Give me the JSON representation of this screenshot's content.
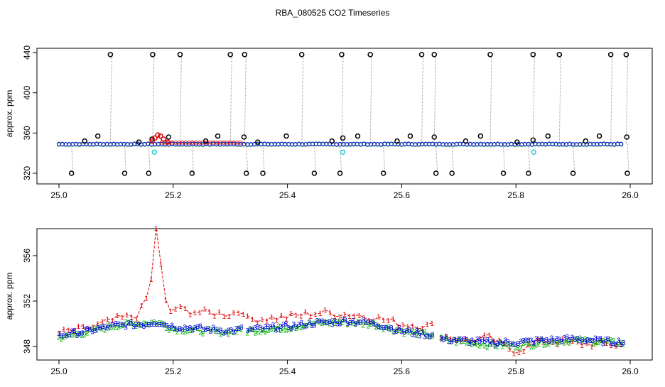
{
  "chart_data": [
    {
      "type": "scatter",
      "title": "RBA_080525  CO2 Timeseries",
      "xlabel": "",
      "ylabel": "approx. ppm",
      "xlim": [
        25.0,
        26.0
      ],
      "ylim": [
        320,
        440
      ],
      "x_ticks": [
        "25.0",
        "25.2",
        "25.4",
        "25.6",
        "25.8",
        "26.0"
      ],
      "y_ticks": [
        "320",
        "360",
        "400",
        "440"
      ],
      "baseline": {
        "x_start": 25.0,
        "x_end": 25.99,
        "y_start": 349,
        "y_end": 349
      },
      "series": [
        {
          "name": "black-outliers-high",
          "color": "#000000",
          "marker": "o",
          "x": [
            25.09,
            25.164,
            25.212,
            25.3,
            25.325,
            25.425,
            25.495,
            25.545,
            25.635,
            25.657,
            25.755,
            25.83,
            25.876,
            25.966,
            25.993
          ],
          "y": [
            438,
            438,
            438,
            438,
            438,
            438,
            438,
            438,
            438,
            438,
            438,
            438,
            438,
            438,
            438
          ]
        },
        {
          "name": "black-outliers-low",
          "color": "#000000",
          "marker": "o",
          "x": [
            25.022,
            25.115,
            25.157,
            25.233,
            25.328,
            25.357,
            25.447,
            25.492,
            25.568,
            25.66,
            25.688,
            25.778,
            25.822,
            25.9,
            25.995
          ],
          "y": [
            320,
            320,
            320,
            320,
            320,
            320,
            320,
            320,
            320,
            320,
            320,
            320,
            320,
            320,
            320
          ]
        },
        {
          "name": "black-near",
          "color": "#000000",
          "marker": "o",
          "x": [
            25.045,
            25.068,
            25.14,
            25.163,
            25.192,
            25.257,
            25.278,
            25.324,
            25.348,
            25.398,
            25.478,
            25.497,
            25.523,
            25.592,
            25.615,
            25.657,
            25.712,
            25.738,
            25.802,
            25.83,
            25.856,
            25.922,
            25.946,
            25.994
          ],
          "y": [
            352,
            357,
            351,
            354,
            356,
            352,
            357,
            356,
            351,
            357,
            352,
            355,
            357,
            352,
            357,
            356,
            352,
            357,
            351,
            353,
            357,
            352,
            357,
            356
          ]
        },
        {
          "name": "red-spike",
          "color": "#e00000",
          "marker": "o",
          "x": [
            25.163,
            25.168,
            25.173,
            25.178,
            25.183,
            25.19
          ],
          "y": [
            352,
            355,
            358,
            357,
            354,
            351
          ]
        },
        {
          "name": "cyan-dips",
          "color": "#22d0e0",
          "marker": "o",
          "x": [
            25.167,
            25.497,
            25.831
          ],
          "y": [
            341,
            341,
            341
          ]
        }
      ]
    },
    {
      "type": "line",
      "title": "",
      "xlabel": "",
      "ylabel": "approx. ppm",
      "xlim": [
        25.0,
        26.0
      ],
      "ylim": [
        346.5,
        359
      ],
      "x_ticks": [
        "25.0",
        "25.2",
        "25.4",
        "25.6",
        "25.8",
        "26.0"
      ],
      "y_ticks": [
        "348",
        "352",
        "356"
      ],
      "gap_after": [
        25.323,
        25.657
      ],
      "series": [
        {
          "name": "1",
          "label": "1",
          "color": "#e00000",
          "linestyle": "dashed",
          "x": [
            25.0,
            25.05,
            25.1,
            25.14,
            25.16,
            25.17,
            25.18,
            25.19,
            25.2,
            25.25,
            25.3,
            25.323,
            25.33,
            25.4,
            25.45,
            25.49,
            25.5,
            25.55,
            25.6,
            25.657,
            25.67,
            25.72,
            25.75,
            25.8,
            25.85,
            25.9,
            25.99
          ],
          "y": [
            349.2,
            349.6,
            350.4,
            350.8,
            353,
            358.5,
            354.5,
            350.8,
            351.4,
            351.0,
            350.9,
            351.2,
            350.4,
            350.6,
            351.0,
            350.9,
            350.9,
            350.6,
            350.0,
            349.8,
            349.0,
            348.5,
            348.8,
            347.6,
            348.6,
            348.3,
            348.2
          ]
        },
        {
          "name": "2",
          "label": "2",
          "color": "#00b000",
          "linestyle": "dashed",
          "x": [
            25.0,
            25.05,
            25.1,
            25.15,
            25.17,
            25.2,
            25.25,
            25.3,
            25.323,
            25.33,
            25.4,
            25.45,
            25.49,
            25.5,
            25.55,
            25.6,
            25.657,
            25.67,
            25.72,
            25.75,
            25.8,
            25.85,
            25.9,
            25.99
          ],
          "y": [
            348.8,
            349.3,
            349.9,
            350.1,
            350.2,
            349.6,
            349.4,
            349.3,
            349.5,
            349.4,
            349.7,
            350.1,
            350.2,
            350.2,
            350.0,
            349.4,
            349.0,
            348.6,
            348.4,
            348.2,
            348.1,
            348.4,
            348.6,
            348.3
          ]
        },
        {
          "name": "3",
          "label": "3",
          "color": "#0000e0",
          "linestyle": "dashed",
          "x": [
            25.0,
            25.05,
            25.1,
            25.15,
            25.17,
            25.2,
            25.25,
            25.3,
            25.323,
            25.33,
            25.4,
            25.45,
            25.49,
            25.5,
            25.55,
            25.6,
            25.657,
            25.67,
            25.72,
            25.75,
            25.8,
            25.85,
            25.9,
            25.99
          ],
          "y": [
            349.0,
            349.4,
            349.9,
            350.0,
            350.2,
            349.8,
            349.6,
            349.4,
            349.6,
            349.5,
            349.8,
            350.1,
            350.2,
            350.3,
            350.1,
            349.4,
            349.0,
            348.7,
            348.5,
            348.4,
            348.4,
            348.6,
            348.7,
            348.4
          ]
        }
      ]
    }
  ]
}
